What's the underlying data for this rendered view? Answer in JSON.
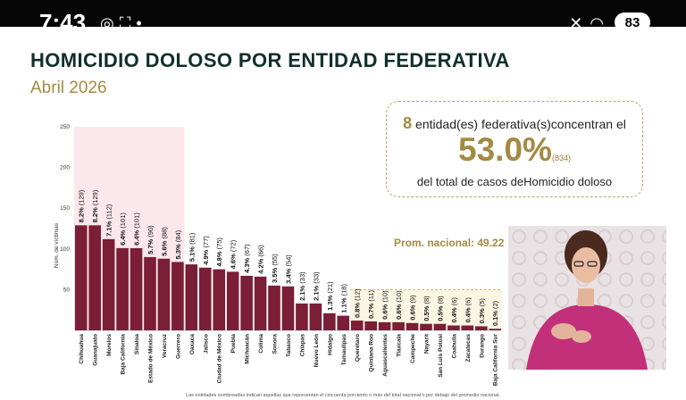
{
  "status_bar": {
    "time": "7:43",
    "battery": "83",
    "left_icons": [
      "whatsapp-icon",
      "screenshot-icon",
      "dot-icon"
    ],
    "right_icons": [
      "mute-icon",
      "wifi-icon"
    ]
  },
  "title": "HOMICIDIO DOLOSO POR ENTIDAD FEDERATIVA",
  "subtitle": "Abril 2026",
  "summary": {
    "count": "8",
    "line1": " entidad(es) federativa(s)concentran el",
    "pct": "53.0%",
    "pct_sub": "(834)",
    "line3": "del total de casos deHomicidio doloso"
  },
  "average_label": "Prom. nacional: 49.22",
  "footnote": "Las entidades sombreadas indican aquellas que representan el cincuenta porciento o más del total nacional o por debajo del promedio nacional.",
  "colors": {
    "bar": "#7b1e37",
    "highlight_top": "#fce8ec",
    "highlight_low": "#fbf6e3",
    "title": "#10302a",
    "gold": "#a38a44"
  },
  "chart_data": {
    "type": "bar",
    "ylabel": "Núm. de víctimas",
    "ylim": [
      0,
      250
    ],
    "yticks": [
      50,
      100,
      150,
      200,
      250
    ],
    "categories": [
      "Chihuahua",
      "Guanajuato",
      "Morelos",
      "Baja California",
      "Sinaloa",
      "Estado de México",
      "Veracruz",
      "Guerrero",
      "Oaxaca",
      "Jalisco",
      "Ciudad de México",
      "Puebla",
      "Michoacán",
      "Colima",
      "Sonora",
      "Tabasco",
      "Chiapas",
      "Nuevo León",
      "Hidalgo",
      "Tamaulipas",
      "Querétaro",
      "Quintana Roo",
      "Aguascalientes",
      "Tlaxcala",
      "Campeche",
      "Nayarit",
      "San Luis Potosí",
      "Coahuila",
      "Zacatecas",
      "Durango",
      "Baja California Sur"
    ],
    "values": [
      129,
      129,
      112,
      101,
      101,
      90,
      88,
      84,
      81,
      77,
      75,
      72,
      67,
      66,
      55,
      54,
      33,
      33,
      21,
      18,
      12,
      11,
      10,
      10,
      9,
      8,
      8,
      6,
      6,
      5,
      2
    ],
    "labels": [
      "8.2% (129)",
      "8.2% (129)",
      "7.1% (112)",
      "6.4% (101)",
      "6.4% (101)",
      "5.7% (90)",
      "5.6% (88)",
      "5.3% (84)",
      "5.1% (81)",
      "4.9% (77)",
      "4.8% (75)",
      "4.6% (72)",
      "4.3% (67)",
      "4.2% (66)",
      "3.5% (55)",
      "3.4% (54)",
      "2.1% (33)",
      "2.1% (33)",
      "1.3% (21)",
      "1.1% (18)",
      "0.8% (12)",
      "0.7% (11)",
      "0.6% (10)",
      "0.6% (10)",
      "0.6% (9)",
      "0.5% (8)",
      "0.5% (8)",
      "0.4% (6)",
      "0.4% (6)",
      "0.3% (5)",
      "0.1% (2)"
    ],
    "highlight_top_count": 8,
    "highlight_low_from": 20
  }
}
